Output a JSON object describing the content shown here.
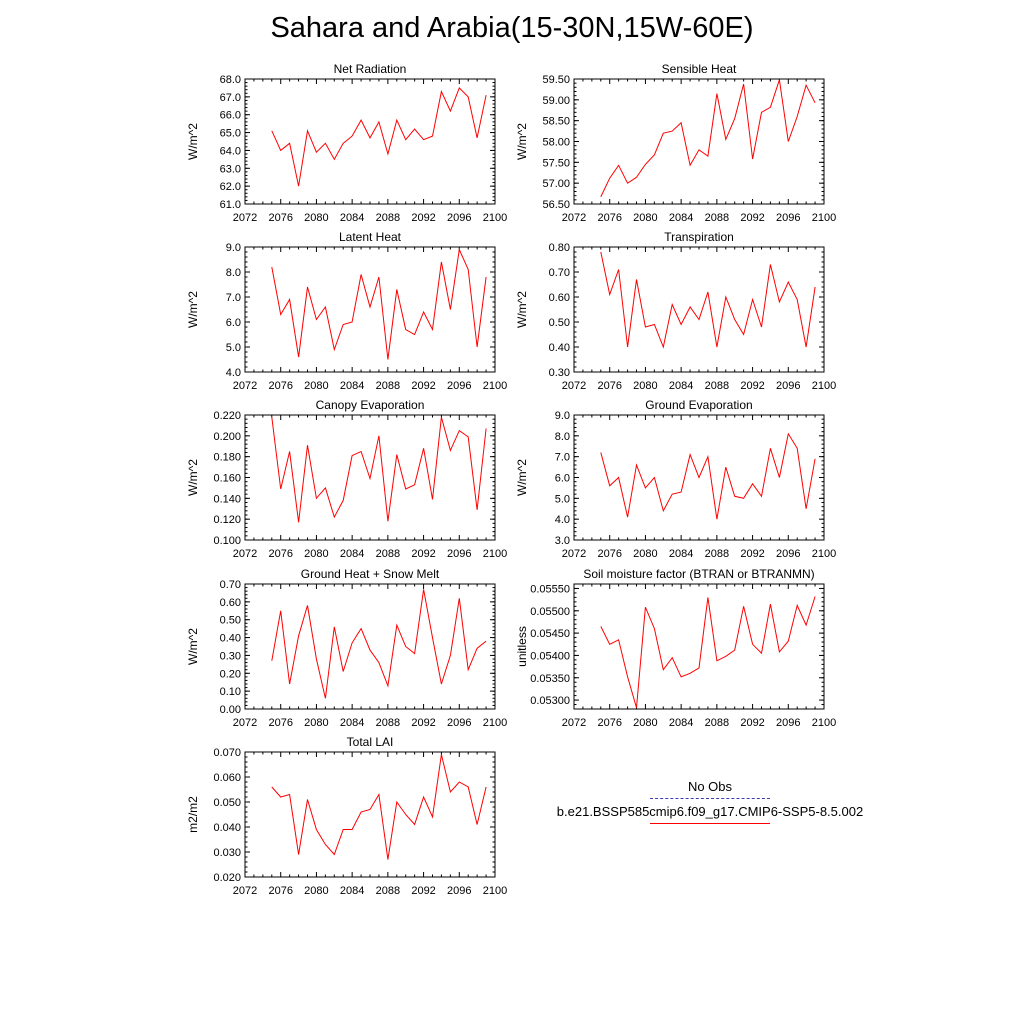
{
  "title": "Sahara and Arabia(15-30N,15W-60E)",
  "colors": {
    "model": "#ff0000",
    "obs": "#3b3bb3",
    "axis": "#000000"
  },
  "legend": {
    "obs_label": "No Obs",
    "model_label": "b.e21.BSSP585cmip6.f09_g17.CMIP6-SSP5-8.5.002"
  },
  "chart_data": [
    {
      "type": "line",
      "title": "Net Radiation",
      "ylabel": "W/m^2",
      "xlim": [
        2072,
        2100
      ],
      "xticks": [
        "2072",
        "2076",
        "2080",
        "2084",
        "2088",
        "2092",
        "2096",
        "2100"
      ],
      "ylim": [
        61.0,
        68.0
      ],
      "yticks": [
        "61.0",
        "62.0",
        "63.0",
        "64.0",
        "65.0",
        "66.0",
        "67.0",
        "68.0"
      ],
      "x": [
        2075,
        2076,
        2077,
        2078,
        2079,
        2080,
        2081,
        2082,
        2083,
        2084,
        2085,
        2086,
        2087,
        2088,
        2089,
        2090,
        2091,
        2092,
        2093,
        2094,
        2095,
        2096,
        2097,
        2098,
        2099
      ],
      "y": [
        65.1,
        64.0,
        64.4,
        62.0,
        65.1,
        63.9,
        64.4,
        63.5,
        64.4,
        64.8,
        65.7,
        64.7,
        65.6,
        63.8,
        65.7,
        64.6,
        65.2,
        64.6,
        64.8,
        67.3,
        66.2,
        67.5,
        67.0,
        64.7,
        67.1
      ]
    },
    {
      "type": "line",
      "title": "Sensible Heat",
      "ylabel": "W/m^2",
      "xlim": [
        2072,
        2100
      ],
      "xticks": [
        "2072",
        "2076",
        "2080",
        "2084",
        "2088",
        "2092",
        "2096",
        "2100"
      ],
      "ylim": [
        56.5,
        59.5
      ],
      "yticks": [
        "56.50",
        "57.00",
        "57.50",
        "58.00",
        "58.50",
        "59.00",
        "59.50"
      ],
      "x": [
        2075,
        2076,
        2077,
        2078,
        2079,
        2080,
        2081,
        2082,
        2083,
        2084,
        2085,
        2086,
        2087,
        2088,
        2089,
        2090,
        2091,
        2092,
        2093,
        2094,
        2095,
        2096,
        2097,
        2098,
        2099
      ],
      "y": [
        56.67,
        57.12,
        57.43,
        57.0,
        57.14,
        57.45,
        57.68,
        58.2,
        58.25,
        58.45,
        57.43,
        57.8,
        57.65,
        59.15,
        58.05,
        58.55,
        59.38,
        57.58,
        58.7,
        58.82,
        59.48,
        58.0,
        58.6,
        59.35,
        58.93
      ]
    },
    {
      "type": "line",
      "title": "Latent Heat",
      "ylabel": "W/m^2",
      "xlim": [
        2072,
        2100
      ],
      "xticks": [
        "2072",
        "2076",
        "2080",
        "2084",
        "2088",
        "2092",
        "2096",
        "2100"
      ],
      "ylim": [
        4.0,
        9.0
      ],
      "yticks": [
        "4.0",
        "5.0",
        "6.0",
        "7.0",
        "8.0",
        "9.0"
      ],
      "x": [
        2075,
        2076,
        2077,
        2078,
        2079,
        2080,
        2081,
        2082,
        2083,
        2084,
        2085,
        2086,
        2087,
        2088,
        2089,
        2090,
        2091,
        2092,
        2093,
        2094,
        2095,
        2096,
        2097,
        2098,
        2099
      ],
      "y": [
        8.2,
        6.3,
        6.9,
        4.6,
        7.4,
        6.1,
        6.6,
        4.9,
        5.9,
        6.0,
        7.9,
        6.6,
        7.8,
        4.5,
        7.3,
        5.7,
        5.5,
        6.4,
        5.7,
        8.4,
        6.5,
        8.9,
        8.1,
        5.0,
        7.8
      ]
    },
    {
      "type": "line",
      "title": "Transpiration",
      "ylabel": "W/m^2",
      "xlim": [
        2072,
        2100
      ],
      "xticks": [
        "2072",
        "2076",
        "2080",
        "2084",
        "2088",
        "2092",
        "2096",
        "2100"
      ],
      "ylim": [
        0.3,
        0.8
      ],
      "yticks": [
        "0.30",
        "0.40",
        "0.50",
        "0.60",
        "0.70",
        "0.80"
      ],
      "x": [
        2075,
        2076,
        2077,
        2078,
        2079,
        2080,
        2081,
        2082,
        2083,
        2084,
        2085,
        2086,
        2087,
        2088,
        2089,
        2090,
        2091,
        2092,
        2093,
        2094,
        2095,
        2096,
        2097,
        2098,
        2099
      ],
      "y": [
        0.78,
        0.61,
        0.71,
        0.4,
        0.67,
        0.48,
        0.49,
        0.4,
        0.57,
        0.49,
        0.56,
        0.51,
        0.62,
        0.4,
        0.6,
        0.51,
        0.45,
        0.59,
        0.48,
        0.73,
        0.58,
        0.66,
        0.59,
        0.4,
        0.64
      ]
    },
    {
      "type": "line",
      "title": "Canopy Evaporation",
      "ylabel": "W/m^2",
      "xlim": [
        2072,
        2100
      ],
      "xticks": [
        "2072",
        "2076",
        "2080",
        "2084",
        "2088",
        "2092",
        "2096",
        "2100"
      ],
      "ylim": [
        0.1,
        0.22
      ],
      "yticks": [
        "0.100",
        "0.120",
        "0.140",
        "0.160",
        "0.180",
        "0.200",
        "0.220"
      ],
      "x": [
        2075,
        2076,
        2077,
        2078,
        2079,
        2080,
        2081,
        2082,
        2083,
        2084,
        2085,
        2086,
        2087,
        2088,
        2089,
        2090,
        2091,
        2092,
        2093,
        2094,
        2095,
        2096,
        2097,
        2098,
        2099
      ],
      "y": [
        0.218,
        0.149,
        0.185,
        0.117,
        0.191,
        0.14,
        0.15,
        0.122,
        0.138,
        0.181,
        0.185,
        0.159,
        0.2,
        0.118,
        0.182,
        0.149,
        0.153,
        0.188,
        0.139,
        0.218,
        0.186,
        0.205,
        0.199,
        0.129,
        0.207
      ]
    },
    {
      "type": "line",
      "title": "Ground Evaporation",
      "ylabel": "W/m^2",
      "xlim": [
        2072,
        2100
      ],
      "xticks": [
        "2072",
        "2076",
        "2080",
        "2084",
        "2088",
        "2092",
        "2096",
        "2100"
      ],
      "ylim": [
        3.0,
        9.0
      ],
      "yticks": [
        "3.0",
        "4.0",
        "5.0",
        "6.0",
        "7.0",
        "8.0",
        "9.0"
      ],
      "x": [
        2075,
        2076,
        2077,
        2078,
        2079,
        2080,
        2081,
        2082,
        2083,
        2084,
        2085,
        2086,
        2087,
        2088,
        2089,
        2090,
        2091,
        2092,
        2093,
        2094,
        2095,
        2096,
        2097,
        2098,
        2099
      ],
      "y": [
        7.2,
        5.6,
        6.0,
        4.1,
        6.6,
        5.5,
        6.0,
        4.4,
        5.2,
        5.3,
        7.1,
        6.0,
        7.0,
        4.0,
        6.5,
        5.1,
        5.0,
        5.7,
        5.1,
        7.4,
        6.0,
        8.1,
        7.4,
        4.5,
        6.9
      ]
    },
    {
      "type": "line",
      "title": "Ground Heat + Snow Melt",
      "ylabel": "W/m^2",
      "xlim": [
        2072,
        2100
      ],
      "xticks": [
        "2072",
        "2076",
        "2080",
        "2084",
        "2088",
        "2092",
        "2096",
        "2100"
      ],
      "ylim": [
        0.0,
        0.7
      ],
      "yticks": [
        "0.00",
        "0.10",
        "0.20",
        "0.30",
        "0.40",
        "0.50",
        "0.60",
        "0.70"
      ],
      "x": [
        2075,
        2076,
        2077,
        2078,
        2079,
        2080,
        2081,
        2082,
        2083,
        2084,
        2085,
        2086,
        2087,
        2088,
        2089,
        2090,
        2091,
        2092,
        2093,
        2094,
        2095,
        2096,
        2097,
        2098,
        2099
      ],
      "y": [
        0.27,
        0.55,
        0.14,
        0.41,
        0.58,
        0.28,
        0.06,
        0.46,
        0.21,
        0.37,
        0.45,
        0.33,
        0.26,
        0.13,
        0.47,
        0.35,
        0.31,
        0.67,
        0.4,
        0.14,
        0.3,
        0.62,
        0.22,
        0.34,
        0.38
      ]
    },
    {
      "type": "line",
      "title": "Soil moisture factor (BTRAN or BTRANMN)",
      "ylabel": "unitless",
      "xlim": [
        2072,
        2100
      ],
      "xticks": [
        "2072",
        "2076",
        "2080",
        "2084",
        "2088",
        "2092",
        "2096",
        "2100"
      ],
      "ylim": [
        0.0528,
        0.0556
      ],
      "yticks": [
        "0.05300",
        "0.05350",
        "0.05400",
        "0.05450",
        "0.05500",
        "0.05550"
      ],
      "x": [
        2075,
        2076,
        2077,
        2078,
        2079,
        2080,
        2081,
        2082,
        2083,
        2084,
        2085,
        2086,
        2087,
        2088,
        2089,
        2090,
        2091,
        2092,
        2093,
        2094,
        2095,
        2096,
        2097,
        2098,
        2099
      ],
      "y": [
        0.05465,
        0.05425,
        0.05435,
        0.05352,
        0.05283,
        0.05508,
        0.0546,
        0.05368,
        0.05395,
        0.05352,
        0.0536,
        0.05372,
        0.0553,
        0.05388,
        0.05398,
        0.05412,
        0.0551,
        0.05425,
        0.05405,
        0.05515,
        0.05408,
        0.05432,
        0.05512,
        0.05468,
        0.05532
      ]
    },
    {
      "type": "line",
      "title": "Total LAI",
      "ylabel": "m2/m2",
      "xlim": [
        2072,
        2100
      ],
      "xticks": [
        "2072",
        "2076",
        "2080",
        "2084",
        "2088",
        "2092",
        "2096",
        "2100"
      ],
      "ylim": [
        0.02,
        0.07
      ],
      "yticks": [
        "0.020",
        "0.030",
        "0.040",
        "0.050",
        "0.060",
        "0.070"
      ],
      "x": [
        2075,
        2076,
        2077,
        2078,
        2079,
        2080,
        2081,
        2082,
        2083,
        2084,
        2085,
        2086,
        2087,
        2088,
        2089,
        2090,
        2091,
        2092,
        2093,
        2094,
        2095,
        2096,
        2097,
        2098,
        2099
      ],
      "y": [
        0.056,
        0.052,
        0.053,
        0.029,
        0.051,
        0.039,
        0.033,
        0.029,
        0.039,
        0.039,
        0.046,
        0.047,
        0.053,
        0.027,
        0.05,
        0.045,
        0.041,
        0.052,
        0.044,
        0.069,
        0.054,
        0.058,
        0.056,
        0.041,
        0.056
      ]
    }
  ]
}
